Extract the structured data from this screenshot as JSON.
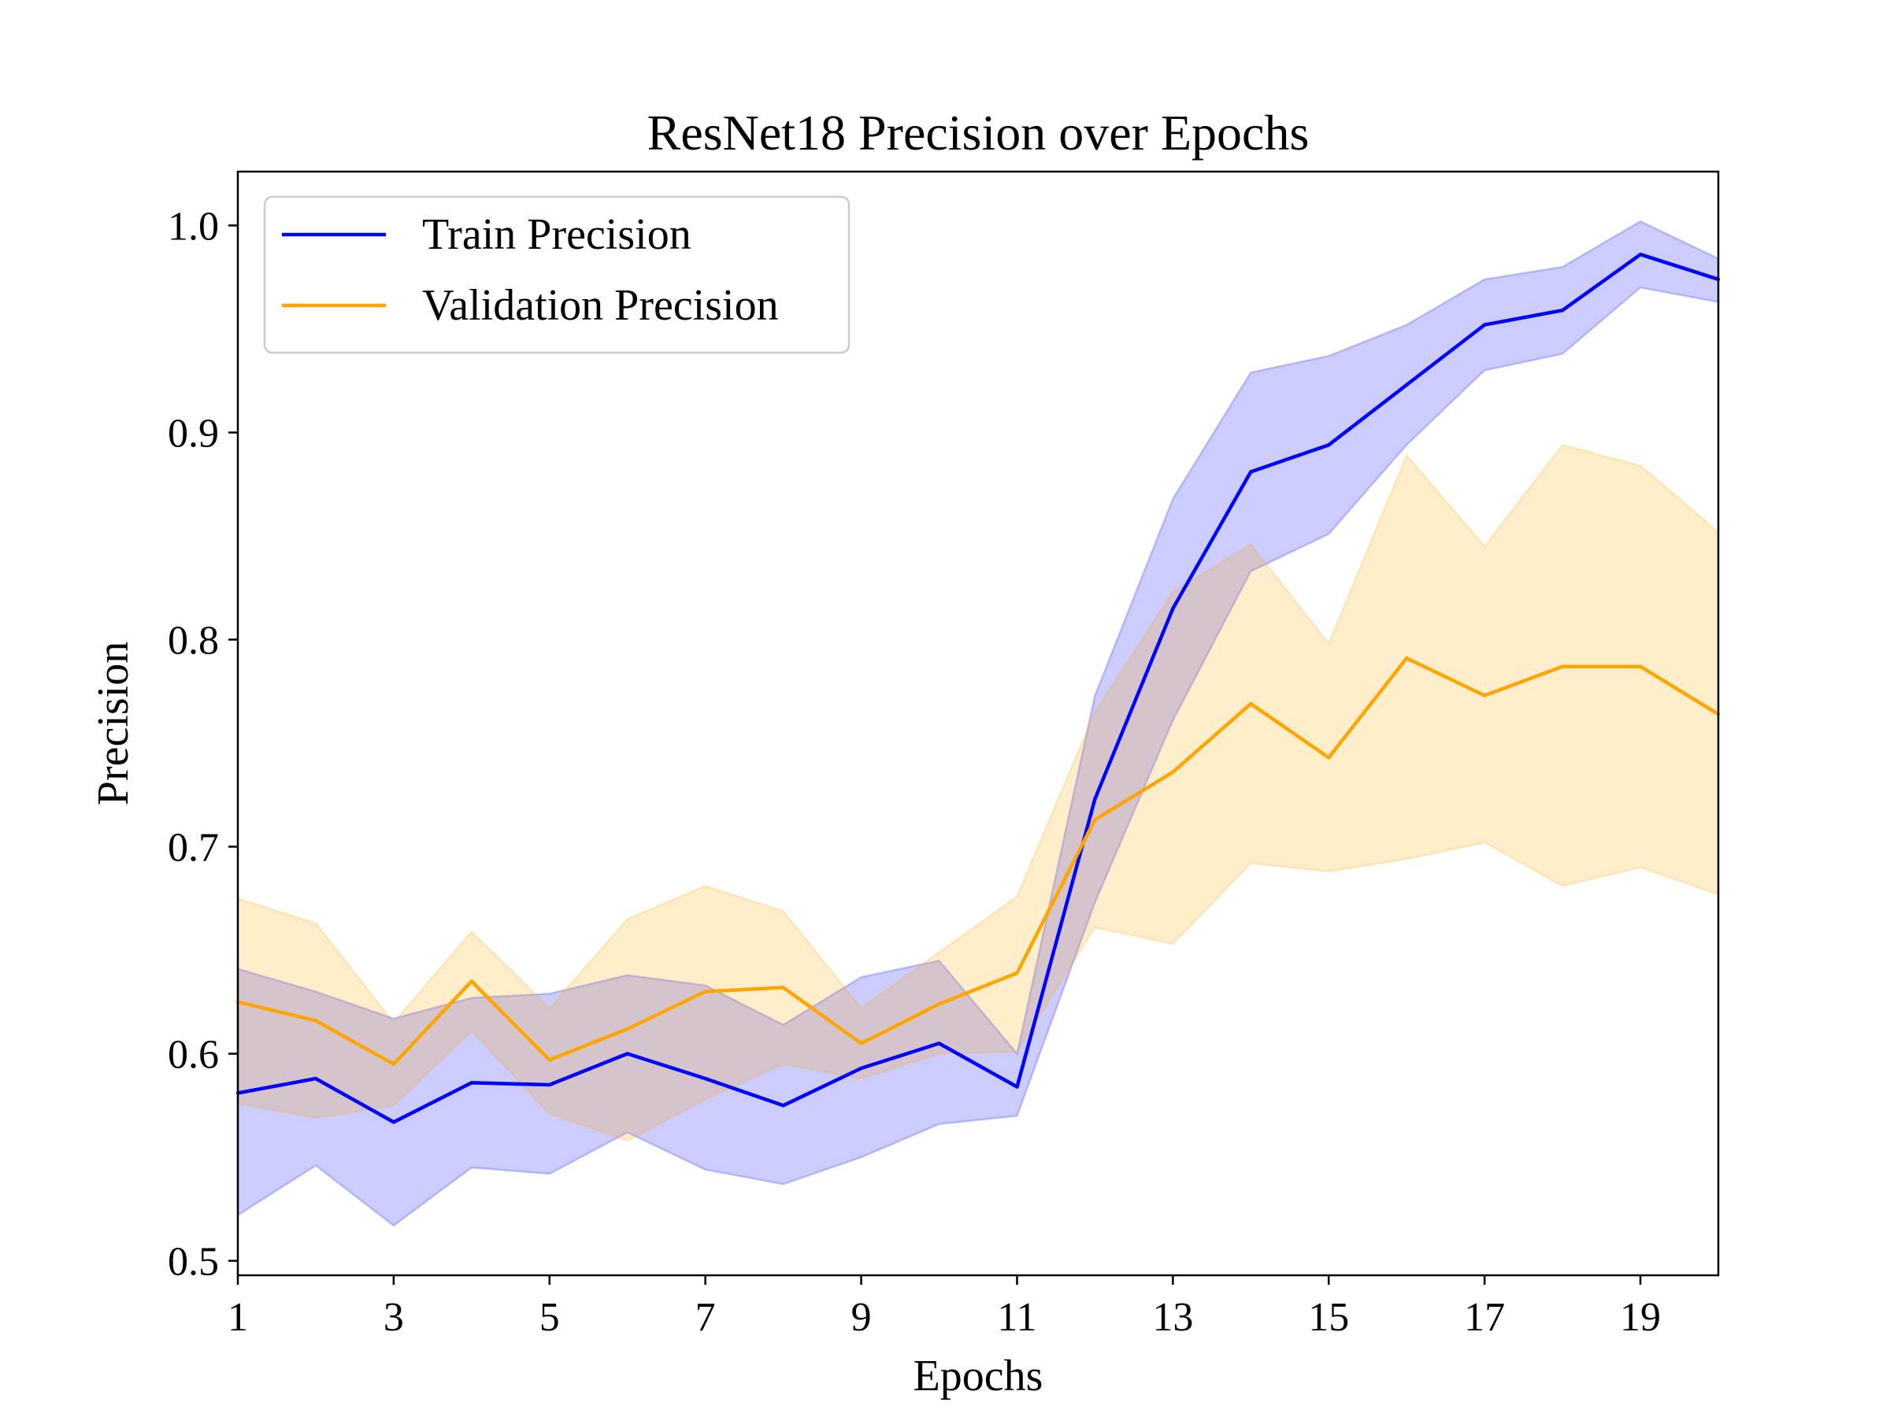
{
  "chart_data": {
    "type": "line",
    "title": "ResNet18 Precision over Epochs",
    "xlabel": "Epochs",
    "ylabel": "Precision",
    "xlim": [
      1,
      20
    ],
    "ylim": [
      0.493,
      1.026
    ],
    "xticks": [
      1,
      3,
      5,
      7,
      9,
      11,
      13,
      15,
      17,
      19
    ],
    "yticks": [
      0.5,
      0.6,
      0.7,
      0.8,
      0.9,
      1.0
    ],
    "ytick_labels": [
      "0.5",
      "0.6",
      "0.7",
      "0.8",
      "0.9",
      "1.0"
    ],
    "grid": false,
    "legend_position": "top-left",
    "x": [
      1,
      2,
      3,
      4,
      5,
      6,
      7,
      8,
      9,
      10,
      11,
      12,
      13,
      14,
      15,
      16,
      17,
      18,
      19,
      20
    ],
    "series": [
      {
        "name": "Train Precision",
        "color": "#0000ff",
        "band_color": "#0000ff",
        "values": [
          0.581,
          0.588,
          0.567,
          0.586,
          0.585,
          0.6,
          0.588,
          0.575,
          0.593,
          0.605,
          0.584,
          0.723,
          0.815,
          0.881,
          0.894,
          0.923,
          0.952,
          0.959,
          0.986,
          0.974
        ],
        "upper": [
          0.641,
          0.63,
          0.617,
          0.627,
          0.629,
          0.638,
          0.633,
          0.614,
          0.637,
          0.645,
          0.6,
          0.773,
          0.868,
          0.929,
          0.937,
          0.952,
          0.974,
          0.98,
          1.002,
          0.984
        ],
        "lower": [
          0.522,
          0.546,
          0.517,
          0.545,
          0.542,
          0.562,
          0.544,
          0.537,
          0.55,
          0.566,
          0.57,
          0.673,
          0.761,
          0.833,
          0.851,
          0.894,
          0.93,
          0.938,
          0.97,
          0.963
        ]
      },
      {
        "name": "Validation Precision",
        "color": "#ffa500",
        "band_color": "#ffa500",
        "values": [
          0.625,
          0.616,
          0.595,
          0.635,
          0.597,
          0.612,
          0.63,
          0.632,
          0.605,
          0.624,
          0.639,
          0.713,
          0.736,
          0.769,
          0.743,
          0.791,
          0.773,
          0.787,
          0.787,
          0.764
        ],
        "upper": [
          0.675,
          0.663,
          0.615,
          0.659,
          0.622,
          0.665,
          0.681,
          0.669,
          0.622,
          0.649,
          0.676,
          0.765,
          0.823,
          0.846,
          0.798,
          0.889,
          0.845,
          0.894,
          0.884,
          0.852
        ],
        "lower": [
          0.576,
          0.569,
          0.575,
          0.611,
          0.571,
          0.558,
          0.578,
          0.595,
          0.588,
          0.6,
          0.601,
          0.661,
          0.653,
          0.692,
          0.688,
          0.694,
          0.702,
          0.681,
          0.69,
          0.677
        ]
      }
    ]
  }
}
